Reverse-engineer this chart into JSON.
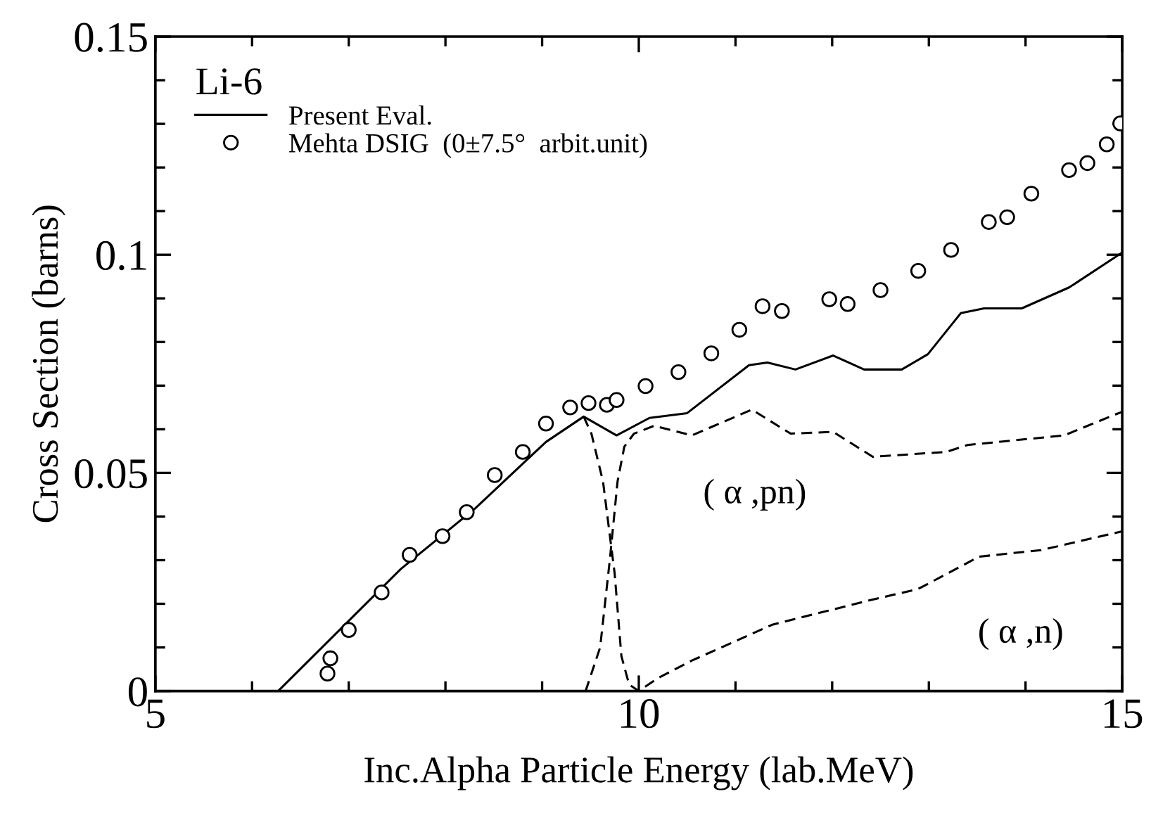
{
  "chart_data": {
    "type": "line",
    "xlabel": "Inc.Alpha Particle Energy (lab.MeV)",
    "ylabel": "Cross Section (barns)",
    "legend_title": "Li-6",
    "xlim": [
      5,
      15
    ],
    "ylim": [
      0,
      0.15
    ],
    "xticks": [
      5,
      {
        "value": 6,
        "label": null
      },
      {
        "value": 7,
        "label": null
      },
      {
        "value": 8,
        "label": null
      },
      {
        "value": 9,
        "label": null
      },
      10,
      {
        "value": 11,
        "label": null
      },
      {
        "value": 12,
        "label": null
      },
      {
        "value": 13,
        "label": null
      },
      {
        "value": 14,
        "label": null
      },
      15
    ],
    "yticks": [
      0,
      {
        "value": 0.01,
        "label": null
      },
      {
        "value": 0.02,
        "label": null
      },
      {
        "value": 0.03,
        "label": null
      },
      {
        "value": 0.04,
        "label": null
      },
      0.05,
      {
        "value": 0.06,
        "label": null
      },
      {
        "value": 0.07,
        "label": null
      },
      {
        "value": 0.08,
        "label": null
      },
      {
        "value": 0.09,
        "label": null
      },
      0.1,
      {
        "value": 0.11,
        "label": null
      },
      {
        "value": 0.12,
        "label": null
      },
      {
        "value": 0.13,
        "label": null
      },
      {
        "value": 0.14,
        "label": null
      },
      0.15
    ],
    "grid": false,
    "legend": "top left",
    "series": [
      {
        "name": "Present Eval.",
        "color": "#000000",
        "line_style": "solid",
        "marker": "none",
        "x": [
          6.27,
          7.54,
          8.31,
          9.04,
          9.43,
          9.77,
          10.11,
          10.5,
          11.14,
          11.33,
          11.62,
          12.01,
          12.33,
          12.72,
          12.99,
          13.33,
          13.57,
          13.96,
          14.45,
          15.0
        ],
        "values": [
          0.0,
          0.028,
          0.0419,
          0.0571,
          0.0629,
          0.0586,
          0.0626,
          0.0637,
          0.0747,
          0.0753,
          0.0737,
          0.0769,
          0.0737,
          0.0737,
          0.0772,
          0.0866,
          0.0877,
          0.0877,
          0.0925,
          0.1005
        ]
      },
      {
        "name": "Mehta DSIG  (0±7.5°  arbit.unit)",
        "type": "scatter",
        "color": "#000000",
        "marker": "circle",
        "x": [
          6.78,
          6.81,
          7.0,
          7.34,
          7.63,
          7.97,
          8.22,
          8.51,
          8.8,
          9.04,
          9.29,
          9.48,
          9.67,
          9.77,
          10.07,
          10.41,
          10.75,
          11.04,
          11.28,
          11.48,
          11.97,
          12.16,
          12.5,
          12.89,
          13.23,
          13.62,
          13.81,
          14.06,
          14.45,
          14.64,
          14.84,
          14.98
        ],
        "values": [
          0.004,
          0.0075,
          0.014,
          0.0226,
          0.0312,
          0.0355,
          0.041,
          0.0495,
          0.0548,
          0.0613,
          0.065,
          0.066,
          0.0656,
          0.0667,
          0.0699,
          0.0731,
          0.0774,
          0.0828,
          0.0882,
          0.0871,
          0.0898,
          0.0887,
          0.0919,
          0.0963,
          0.1011,
          0.1075,
          0.1086,
          0.114,
          0.1194,
          0.121,
          0.1253,
          0.1301
        ]
      },
      {
        "color": "#000000",
        "line_style": "dashed",
        "marker": "none",
        "x": [
          5.0,
          9.45,
          9.6,
          9.7,
          9.78,
          9.85,
          9.95,
          10.16,
          10.55,
          11.17,
          11.57,
          12.01,
          12.42,
          13.18,
          13.4,
          14.4,
          14.93,
          15.0
        ],
        "values": [
          0.0,
          0.0,
          0.01,
          0.03,
          0.048,
          0.056,
          0.059,
          0.0608,
          0.0586,
          0.0645,
          0.059,
          0.0594,
          0.0537,
          0.0548,
          0.0564,
          0.0586,
          0.0634,
          0.064
        ]
      },
      {
        "color": "#000000",
        "line_style": "dashed",
        "marker": "none",
        "x": [
          9.43,
          9.51,
          9.63,
          9.75,
          9.82,
          9.9,
          10.0,
          10.2,
          10.55,
          11.38,
          12.35,
          12.89,
          13.52,
          14.16,
          15.0
        ],
        "values": [
          0.0629,
          0.059,
          0.048,
          0.027,
          0.008,
          0.0015,
          0.0,
          0.003,
          0.007,
          0.0152,
          0.0206,
          0.0234,
          0.0308,
          0.0323,
          0.0366
        ]
      }
    ],
    "annotations": [
      "( α ,pn)",
      "( α ,n)"
    ]
  }
}
